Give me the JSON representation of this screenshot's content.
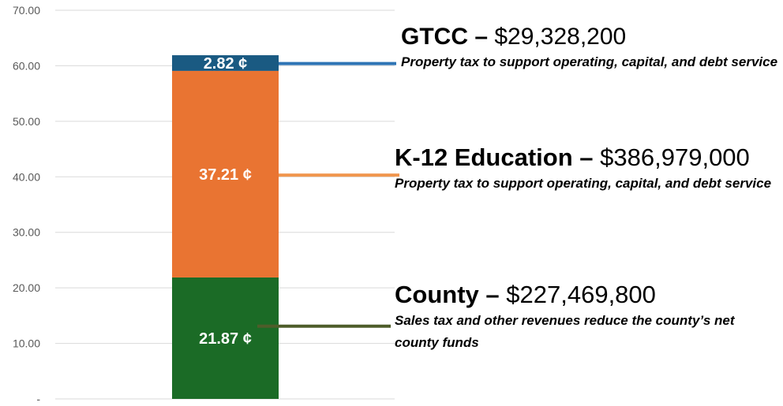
{
  "chart_data": {
    "type": "bar",
    "stacked": true,
    "categories": [
      ""
    ],
    "series": [
      {
        "name": "County",
        "values": [
          21.87
        ],
        "label": "21.87 ¢",
        "color": "#1b6b26"
      },
      {
        "name": "K-12 Education",
        "values": [
          37.21
        ],
        "label": "37.21 ¢",
        "color": "#e97432"
      },
      {
        "name": "GTCC",
        "values": [
          2.82
        ],
        "label": "2.82 ¢",
        "color": "#1a5a82"
      }
    ],
    "yticks": [
      "-",
      "10.00",
      "20.00",
      "30.00",
      "40.00",
      "50.00",
      "60.00",
      "70.00"
    ],
    "ylim": [
      0,
      70
    ],
    "grid": true,
    "legend": "none"
  },
  "annotations": [
    {
      "id": "gtcc",
      "name": "GTCC",
      "dash": "–",
      "amount": "$29,328,200",
      "description": "Property tax to support operating, capital, and debt service",
      "line_color": "#2e74b5",
      "anchor_value": 60.4
    },
    {
      "id": "k12",
      "name": "K-12 Education",
      "dash": "–",
      "amount": "$386,979,000",
      "description": "Property tax to support operating, capital, and debt service",
      "line_color": "#f0964e",
      "anchor_value": 40.3
    },
    {
      "id": "county",
      "name": "County",
      "dash": "–",
      "amount": "$227,469,800",
      "description": "Sales tax and other revenues reduce the county’s net county funds",
      "line_color": "#4e5d2a",
      "anchor_value": 13.1
    }
  ]
}
